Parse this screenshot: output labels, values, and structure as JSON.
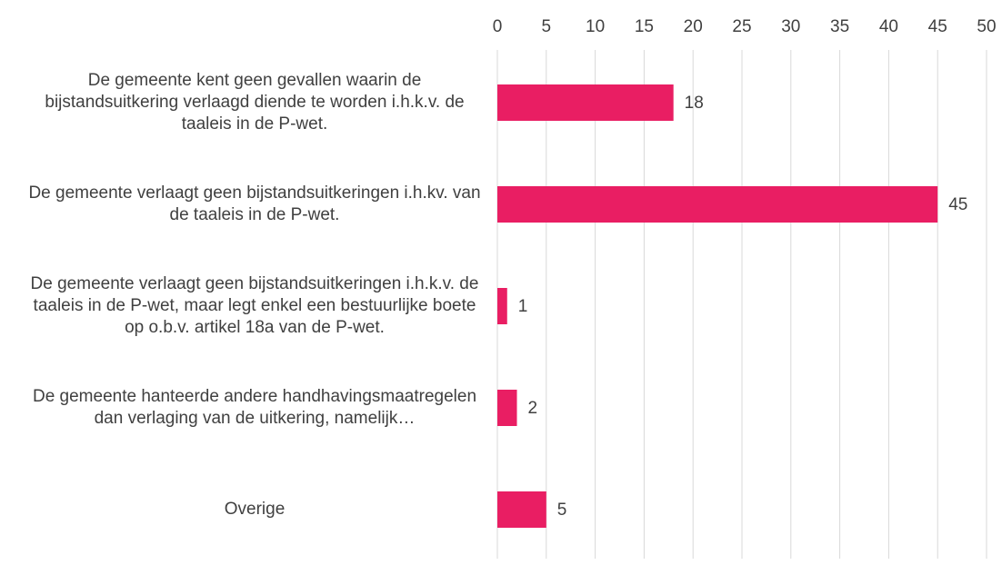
{
  "chart_data": {
    "type": "barh",
    "categories": [
      "De gemeente kent geen gevallen waarin de bijstandsuitkering verlaagd diende te worden i.h.k.v. de taaleis in de P-wet.",
      "De gemeente verlaagt geen bijstandsuitkeringen i.h.kv. van de taaleis in de P-wet.",
      "De gemeente verlaagt geen bijstandsuitkeringen i.h.k.v. de taaleis in de P-wet, maar legt enkel een bestuurlijke boete op o.b.v. artikel 18a van de P-wet.",
      "De gemeente hanteerde andere handhavingsmaatregelen dan verlaging van de uitkering, namelijk…",
      "Overige"
    ],
    "values": [
      18,
      45,
      1,
      2,
      5
    ],
    "color": "#e91e63",
    "xlim": [
      0,
      50
    ],
    "xticks": [
      0,
      5,
      10,
      15,
      20,
      25,
      30,
      35,
      40,
      45,
      50
    ],
    "grid": true,
    "axis_position": "top"
  }
}
